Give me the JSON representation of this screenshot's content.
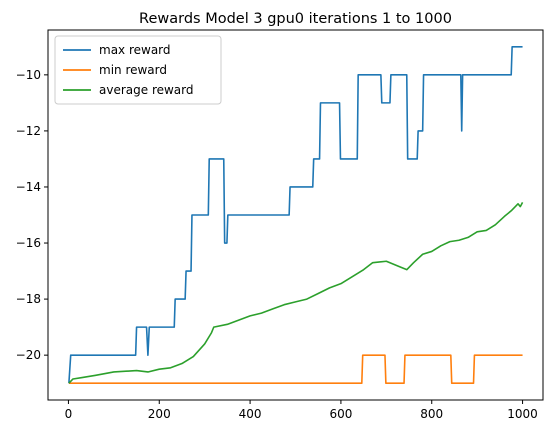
{
  "chart_data": {
    "type": "line",
    "title": "Rewards Model 3 gpu0 iterations 1 to 1000",
    "xlabel": "",
    "ylabel": "",
    "xlim": [
      -45,
      1045
    ],
    "ylim": [
      -21.6,
      -8.4
    ],
    "xticks": [
      0,
      200,
      400,
      600,
      800,
      1000
    ],
    "yticks": [
      -20,
      -18,
      -16,
      -14,
      -12,
      -10
    ],
    "grid": false,
    "legend": "upper-left",
    "series": [
      {
        "name": "max reward",
        "color": "#1f77b4",
        "points": [
          [
            1,
            -21
          ],
          [
            5,
            -20
          ],
          [
            148,
            -20
          ],
          [
            150,
            -19
          ],
          [
            172,
            -19
          ],
          [
            175,
            -20
          ],
          [
            178,
            -19
          ],
          [
            233,
            -19
          ],
          [
            235,
            -18
          ],
          [
            257,
            -18
          ],
          [
            259,
            -17
          ],
          [
            270,
            -17
          ],
          [
            272,
            -15
          ],
          [
            308,
            -15
          ],
          [
            310,
            -13
          ],
          [
            342,
            -13
          ],
          [
            344,
            -16
          ],
          [
            349,
            -16
          ],
          [
            351,
            -15
          ],
          [
            486,
            -15
          ],
          [
            488,
            -14
          ],
          [
            538,
            -14
          ],
          [
            540,
            -13
          ],
          [
            553,
            -13
          ],
          [
            555,
            -11
          ],
          [
            597,
            -11
          ],
          [
            599,
            -13
          ],
          [
            636,
            -13
          ],
          [
            638,
            -10
          ],
          [
            688,
            -10
          ],
          [
            690,
            -11
          ],
          [
            708,
            -11
          ],
          [
            710,
            -10
          ],
          [
            745,
            -10
          ],
          [
            747,
            -13
          ],
          [
            768,
            -13
          ],
          [
            770,
            -12
          ],
          [
            780,
            -12
          ],
          [
            782,
            -10
          ],
          [
            864,
            -10
          ],
          [
            866,
            -12
          ],
          [
            868,
            -10
          ],
          [
            907,
            -10
          ],
          [
            909,
            -10
          ],
          [
            975,
            -10
          ],
          [
            977,
            -9
          ],
          [
            1000,
            -9
          ]
        ]
      },
      {
        "name": "min reward",
        "color": "#ff7f0e",
        "points": [
          [
            1,
            -21
          ],
          [
            646,
            -21
          ],
          [
            648,
            -20
          ],
          [
            697,
            -20
          ],
          [
            699,
            -21
          ],
          [
            739,
            -21
          ],
          [
            741,
            -20
          ],
          [
            842,
            -20
          ],
          [
            844,
            -21
          ],
          [
            892,
            -21
          ],
          [
            894,
            -20
          ],
          [
            1000,
            -20
          ]
        ]
      },
      {
        "name": "average reward",
        "color": "#2ca02c",
        "points": [
          [
            1,
            -21
          ],
          [
            10,
            -20.85
          ],
          [
            30,
            -20.8
          ],
          [
            60,
            -20.72
          ],
          [
            100,
            -20.6
          ],
          [
            150,
            -20.55
          ],
          [
            175,
            -20.6
          ],
          [
            200,
            -20.5
          ],
          [
            225,
            -20.45
          ],
          [
            250,
            -20.3
          ],
          [
            275,
            -20.05
          ],
          [
            300,
            -19.6
          ],
          [
            315,
            -19.2
          ],
          [
            320,
            -19.0
          ],
          [
            350,
            -18.9
          ],
          [
            375,
            -18.75
          ],
          [
            400,
            -18.6
          ],
          [
            425,
            -18.5
          ],
          [
            450,
            -18.35
          ],
          [
            475,
            -18.2
          ],
          [
            500,
            -18.1
          ],
          [
            525,
            -18.0
          ],
          [
            550,
            -17.8
          ],
          [
            575,
            -17.6
          ],
          [
            600,
            -17.45
          ],
          [
            625,
            -17.2
          ],
          [
            650,
            -16.95
          ],
          [
            670,
            -16.7
          ],
          [
            700,
            -16.65
          ],
          [
            730,
            -16.85
          ],
          [
            745,
            -16.95
          ],
          [
            760,
            -16.7
          ],
          [
            780,
            -16.4
          ],
          [
            800,
            -16.3
          ],
          [
            820,
            -16.1
          ],
          [
            840,
            -15.95
          ],
          [
            860,
            -15.9
          ],
          [
            880,
            -15.8
          ],
          [
            900,
            -15.6
          ],
          [
            920,
            -15.55
          ],
          [
            940,
            -15.35
          ],
          [
            960,
            -15.05
          ],
          [
            975,
            -14.85
          ],
          [
            990,
            -14.6
          ],
          [
            995,
            -14.7
          ],
          [
            1000,
            -14.55
          ]
        ]
      }
    ]
  }
}
